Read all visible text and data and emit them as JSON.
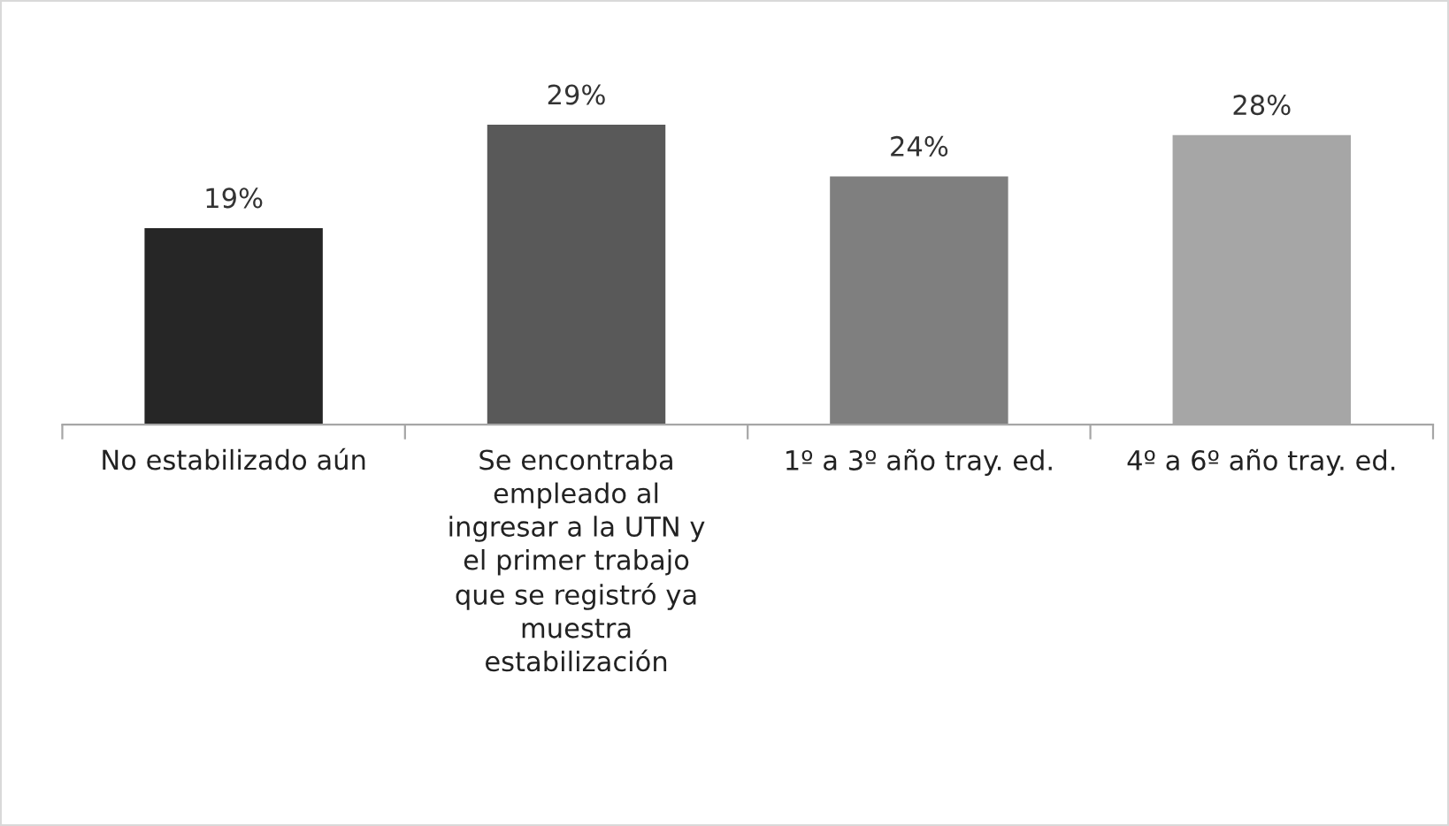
{
  "chart_data": {
    "type": "bar",
    "categories": [
      "No estabilizado aún",
      "Se encontraba\nempleado al\ningresar a la UTN y\nel primer trabajo\nque se registró ya\nmuestra\nestabilización",
      "1º a 3º año tray. ed.",
      "4º a 6º año tray. ed."
    ],
    "values": [
      19,
      29,
      24,
      28
    ],
    "colors": [
      "#262626",
      "#595959",
      "#7f7f7f",
      "#a6a6a6"
    ],
    "value_labels": [
      "19%",
      "29%",
      "24%",
      "28%"
    ],
    "grid": false,
    "legend": false
  }
}
